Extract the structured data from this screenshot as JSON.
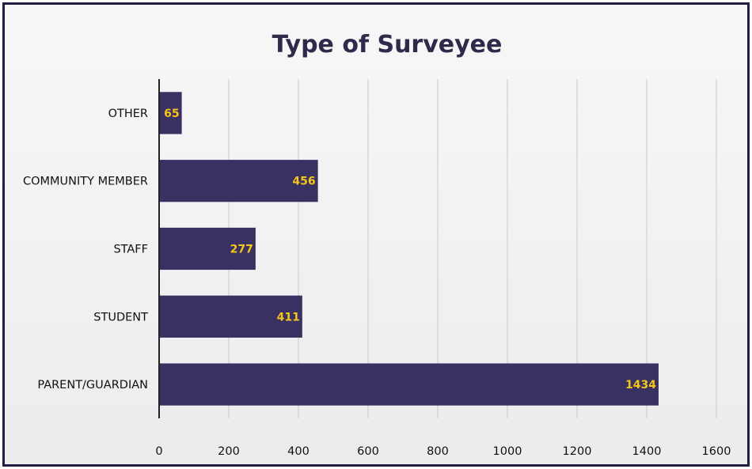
{
  "chart_data": {
    "type": "bar",
    "orientation": "horizontal",
    "title": "Type of Surveyee",
    "categories": [
      "OTHER",
      "COMMUNITY MEMBER",
      "STAFF",
      "STUDENT",
      "PARENT/GUARDIAN"
    ],
    "values": [
      65,
      456,
      277,
      411,
      1434
    ],
    "xticks": [
      "0",
      "200",
      "400",
      "600",
      "800",
      "1000",
      "1200",
      "1400",
      "1600"
    ],
    "xlim": [
      0,
      1600
    ],
    "grid": true,
    "legend": "none",
    "colors": {
      "bar": "#3a3163",
      "data_label": "#f5c518",
      "grid": "#c9c9c9",
      "axis": "#222222",
      "border": "#221d42"
    }
  }
}
